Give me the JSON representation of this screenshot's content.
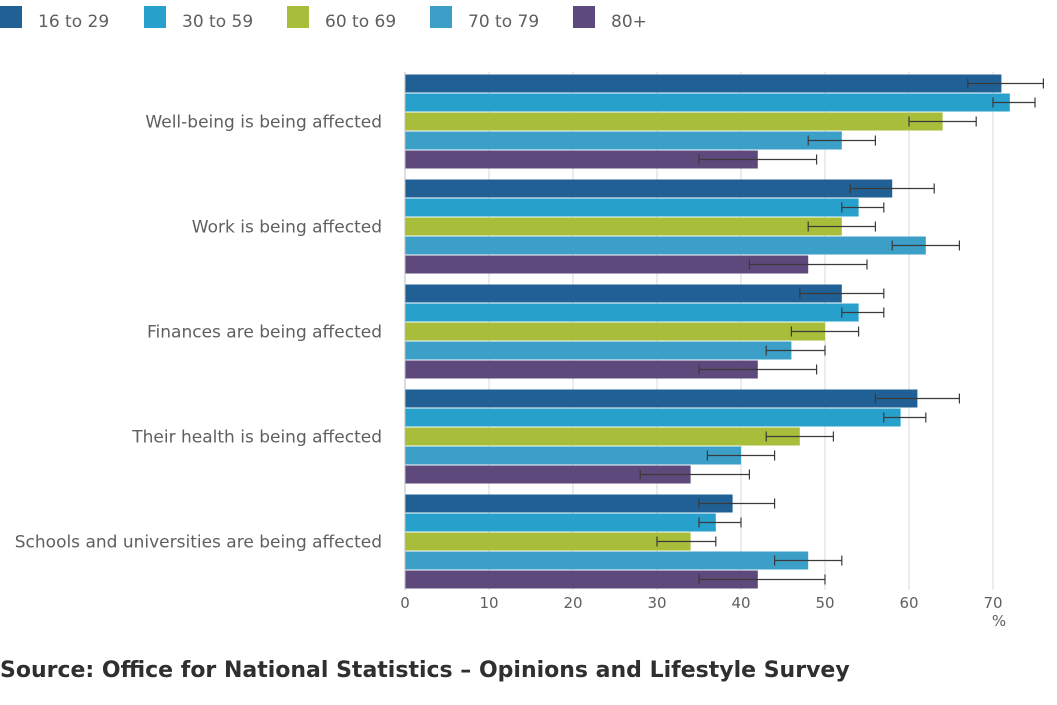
{
  "chart_data": {
    "type": "bar",
    "orientation": "horizontal",
    "categories": [
      "Well-being is being affected",
      "Work is being affected",
      "Finances are being affected",
      "Their health is being affected",
      "Schools and universities are being affected"
    ],
    "series": [
      {
        "name": "16 to 29",
        "color": "#206095",
        "values": [
          71,
          58,
          52,
          61,
          39
        ],
        "ci_low": [
          67,
          53,
          47,
          56,
          35
        ],
        "ci_high": [
          76,
          63,
          57,
          66,
          44
        ]
      },
      {
        "name": "30 to 59",
        "color": "#27a0cc",
        "values": [
          72,
          54,
          54,
          59,
          37
        ],
        "ci_low": [
          70,
          52,
          52,
          57,
          35
        ],
        "ci_high": [
          75,
          57,
          57,
          62,
          40
        ]
      },
      {
        "name": "60 to 69",
        "color": "#a8bd3a",
        "values": [
          64,
          52,
          50,
          47,
          34
        ],
        "ci_low": [
          60,
          48,
          46,
          43,
          30
        ],
        "ci_high": [
          68,
          56,
          54,
          51,
          37
        ]
      },
      {
        "name": "70 to 79",
        "color": "#3b9fc8",
        "values": [
          52,
          62,
          46,
          40,
          48
        ],
        "ci_low": [
          48,
          58,
          43,
          36,
          44
        ],
        "ci_high": [
          56,
          66,
          50,
          44,
          52
        ]
      },
      {
        "name": "80+",
        "color": "#5e497d",
        "values": [
          42,
          48,
          42,
          34,
          42
        ],
        "ci_low": [
          35,
          41,
          35,
          28,
          35
        ],
        "ci_high": [
          49,
          55,
          49,
          41,
          50
        ]
      }
    ],
    "xlim": [
      0,
      75
    ],
    "xticks": [
      0,
      10,
      20,
      30,
      40,
      50,
      60,
      70
    ],
    "xlabel": "%",
    "legend_position": "top-left",
    "grid": "vertical"
  },
  "source": "Source: Office for National Statistics – Opinions and Lifestyle Survey"
}
